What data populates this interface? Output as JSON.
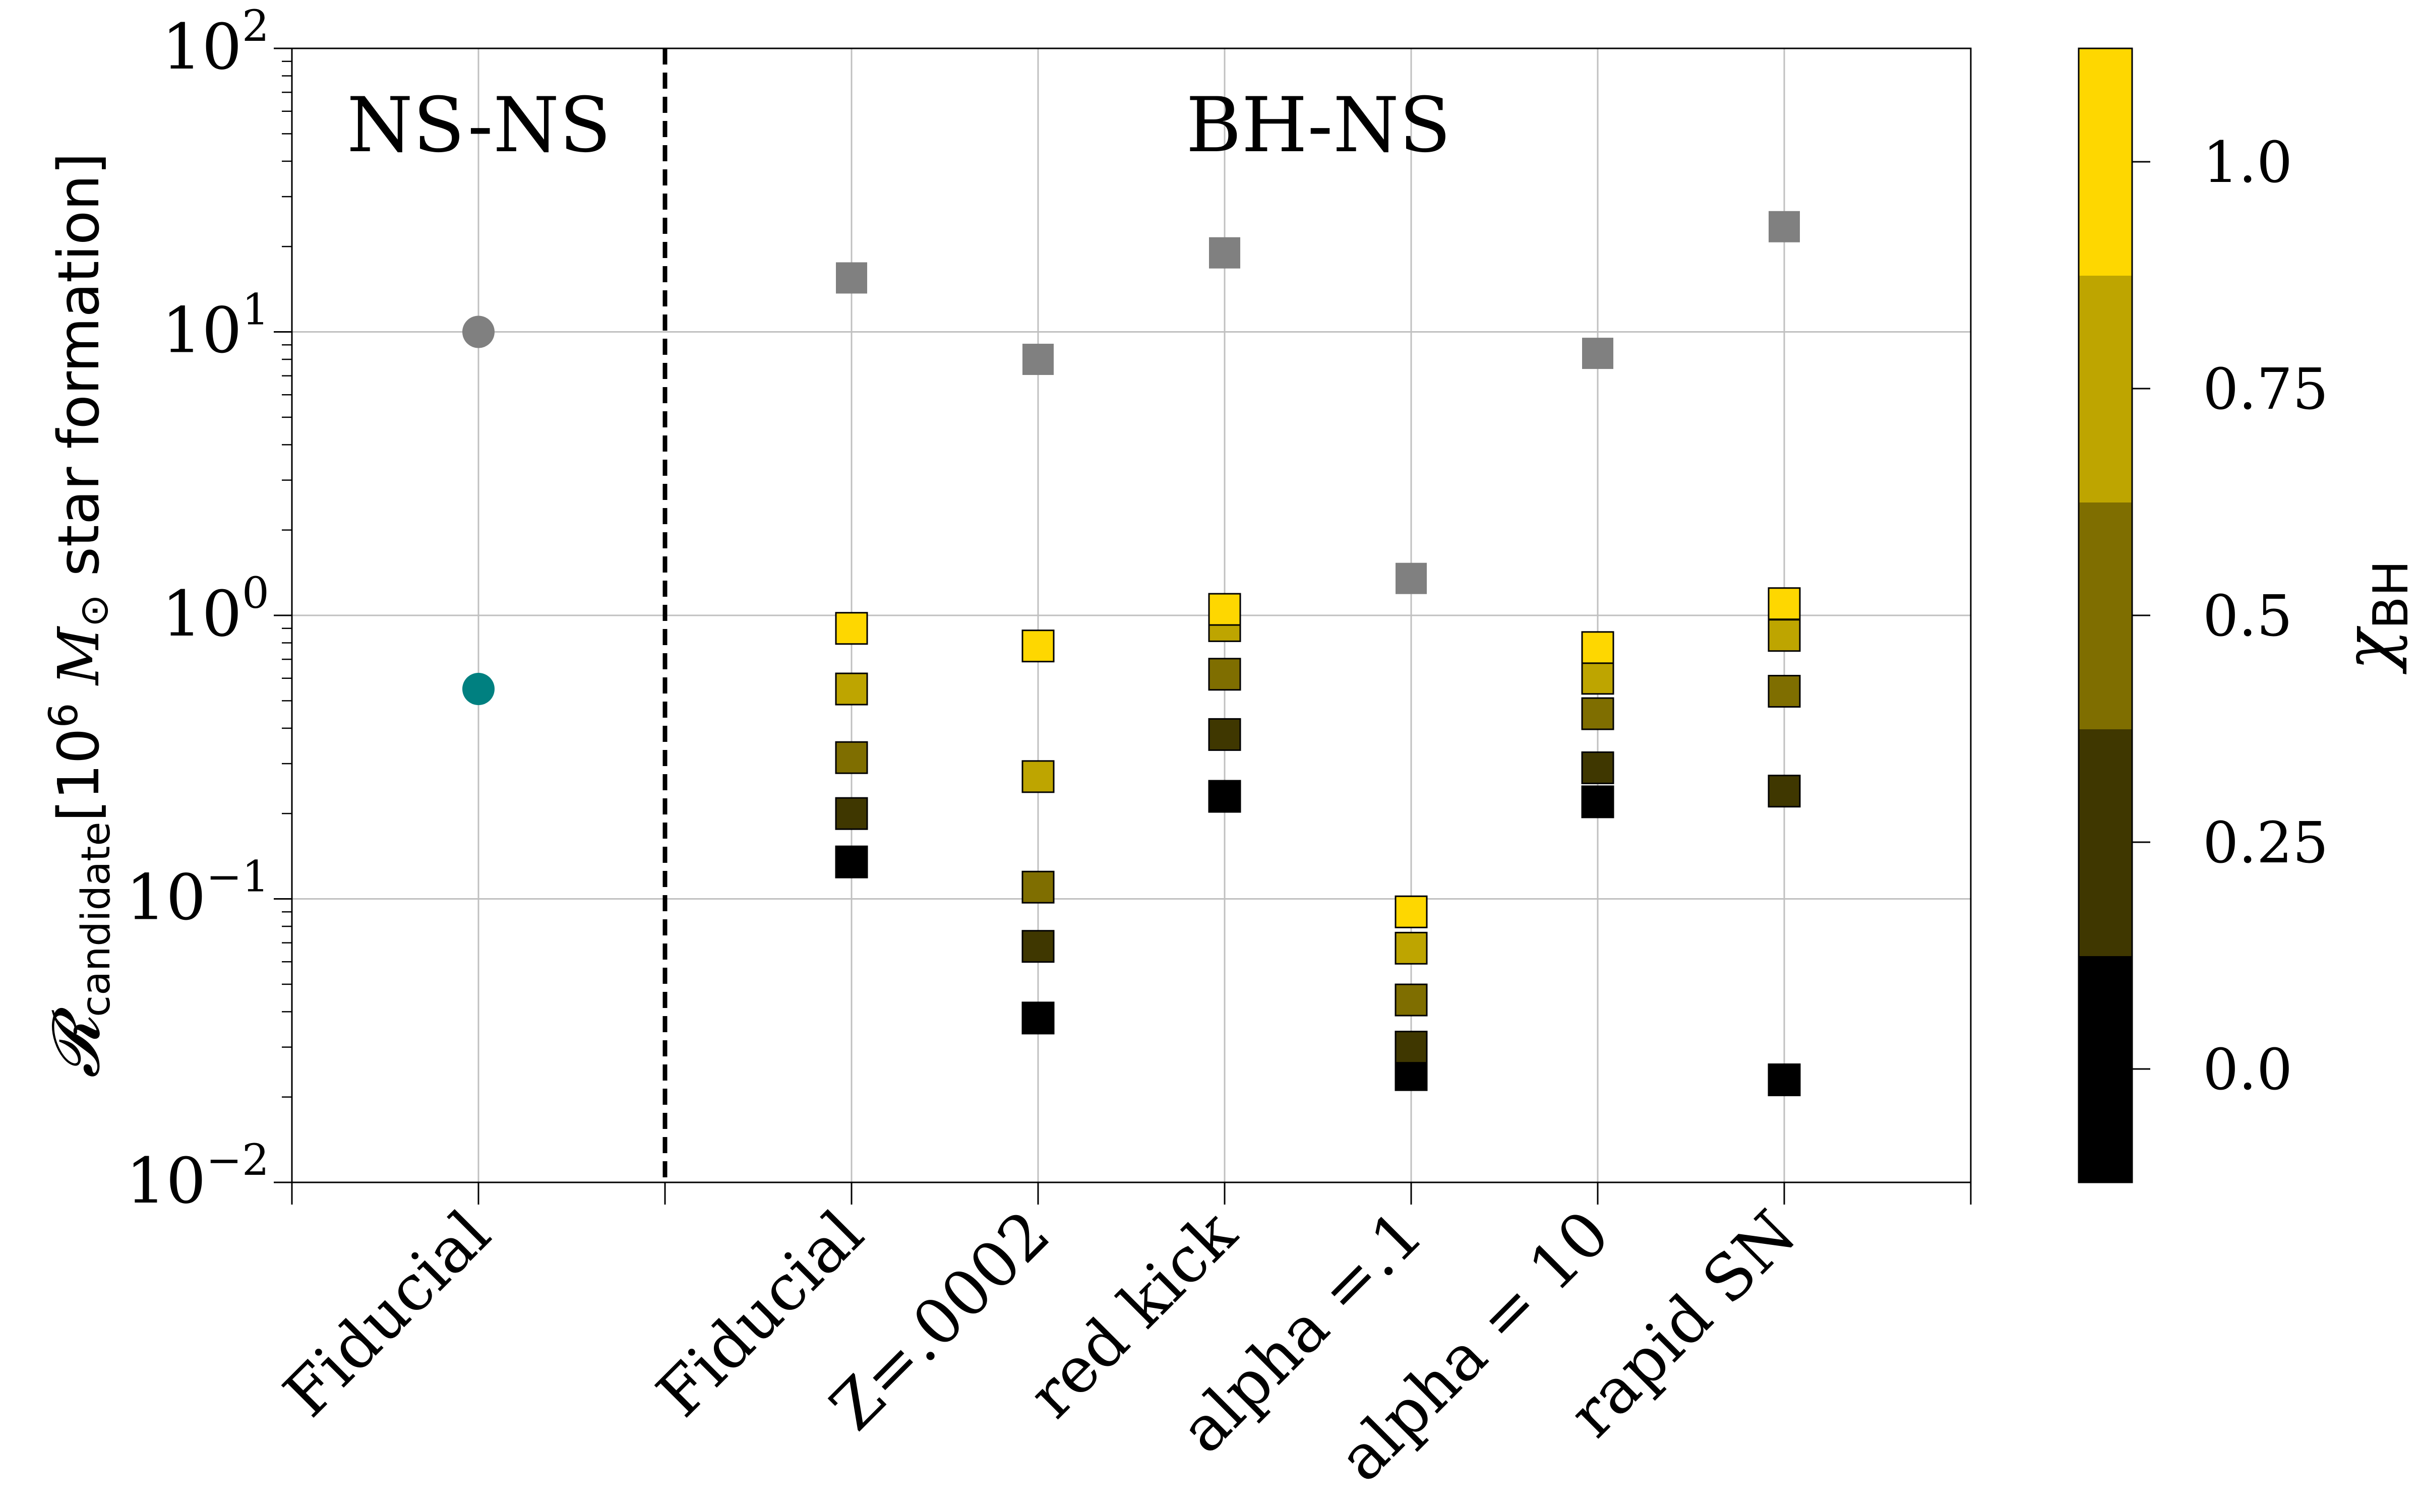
{
  "chart_data": {
    "type": "scatter",
    "ylabel_main": "𝓡",
    "ylabel_sub": "candidate",
    "ylabel_bracket": "[10",
    "ylabel_sup": "6",
    "ylabel_mass": " M",
    "ylabel_sun": "⊙",
    "ylabel_rest": " star formation]",
    "y_scale": "log",
    "ylim": [
      0.01,
      100
    ],
    "yticks": [
      {
        "value": 0.01,
        "base": "10",
        "exp": "−2"
      },
      {
        "value": 0.1,
        "base": "10",
        "exp": "−1"
      },
      {
        "value": 1,
        "base": "10",
        "exp": "0"
      },
      {
        "value": 10,
        "base": "10",
        "exp": "1"
      },
      {
        "value": 100,
        "base": "10",
        "exp": "2"
      }
    ],
    "categories": [
      "Fiducial",
      "Fiducial",
      "Z=.0002",
      "red kick",
      "alpha =.1",
      "alpha = 10",
      "rapid SN"
    ],
    "group_labels": [
      "NS-NS",
      "BH-NS"
    ],
    "grid": true,
    "separator": "dashed line between NS-NS and BH-NS groups",
    "nsns_points": [
      {
        "category": 0,
        "value": 10.0,
        "color": "#808080"
      },
      {
        "category": 0,
        "value": 0.55,
        "color": "#008080"
      }
    ],
    "bhns_total": [
      {
        "category": 1,
        "value": 15.5
      },
      {
        "category": 2,
        "value": 8.0
      },
      {
        "category": 3,
        "value": 19.0
      },
      {
        "category": 4,
        "value": 1.35
      },
      {
        "category": 5,
        "value": 8.4
      },
      {
        "category": 6,
        "value": 23.5
      }
    ],
    "bhns_total_color": "#808080",
    "bhns_by_spin": [
      {
        "category": 1,
        "values": [
          0.135,
          0.2,
          0.315,
          0.55,
          0.9
        ]
      },
      {
        "category": 2,
        "values": [
          0.038,
          0.068,
          0.11,
          0.27,
          0.78
        ]
      },
      {
        "category": 3,
        "values": [
          0.23,
          0.38,
          0.62,
          0.92,
          1.05
        ]
      },
      {
        "category": 4,
        "values": [
          0.024,
          0.03,
          0.044,
          0.067,
          0.09
        ]
      },
      {
        "category": 5,
        "values": [
          0.22,
          0.29,
          0.45,
          0.6,
          0.77
        ]
      },
      {
        "category": 6,
        "values": [
          0.023,
          0.24,
          0.54,
          0.85,
          1.1
        ]
      }
    ],
    "colorbar": {
      "label": "χ",
      "label_sub": "BH",
      "colors": [
        "#000000",
        "#3f3700",
        "#7f6e00",
        "#bea500",
        "#fed700"
      ],
      "ticks": [
        "0.0",
        "0.25",
        "0.5",
        "0.75",
        "1.0"
      ]
    }
  }
}
